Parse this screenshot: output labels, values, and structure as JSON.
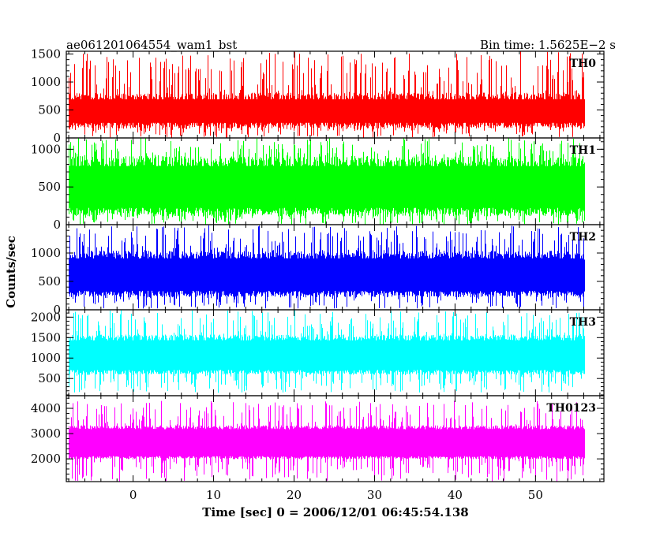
{
  "header": {
    "source": "ae061201064554_wam1_bst",
    "bin_time": "Bin time: 1.5625E−2 s"
  },
  "chart_data": {
    "type": "line",
    "title": "ae061201064554_wam1_bst",
    "subtitle": "Bin time: 1.5625E−2 s",
    "xlabel": "Time [sec] 0 = 2006/12/01 06:45:54.138",
    "ylabel": "Counts/sec",
    "xlim": [
      -8.3,
      58.5
    ],
    "x_range_data": [
      -8,
      56
    ],
    "x_ticks": [
      0,
      10,
      20,
      30,
      40,
      50
    ],
    "grid": false,
    "panels": [
      {
        "name": "TH0",
        "color": "#ff0000",
        "ylim": [
          0,
          1550
        ],
        "y_ticks": [
          0,
          500,
          1000,
          1500
        ],
        "baseline": 470,
        "band_low": 230,
        "band_high": 730,
        "spike_max": 1550,
        "dip_min": 0
      },
      {
        "name": "TH1",
        "color": "#00ff00",
        "ylim": [
          0,
          1150
        ],
        "y_ticks": [
          0,
          500,
          1000
        ],
        "baseline": 500,
        "band_low": 170,
        "band_high": 830,
        "spike_max": 1150,
        "dip_min": 0
      },
      {
        "name": "TH2",
        "color": "#0000ff",
        "ylim": [
          0,
          1500
        ],
        "y_ticks": [
          0,
          500,
          1000
        ],
        "baseline": 620,
        "band_low": 280,
        "band_high": 960,
        "spike_max": 1500,
        "dip_min": 20
      },
      {
        "name": "TH3",
        "color": "#00ffff",
        "ylim": [
          80,
          2180
        ],
        "y_ticks": [
          500,
          1000,
          1500,
          2000
        ],
        "baseline": 1050,
        "band_low": 650,
        "band_high": 1500,
        "spike_max": 2180,
        "dip_min": 150
      },
      {
        "name": "TH0123",
        "color": "#ff00ff",
        "ylim": [
          1100,
          4500
        ],
        "y_ticks": [
          2000,
          3000,
          4000
        ],
        "baseline": 2650,
        "band_low": 2050,
        "band_high": 3250,
        "spike_max": 4300,
        "dip_min": 1100
      }
    ]
  }
}
